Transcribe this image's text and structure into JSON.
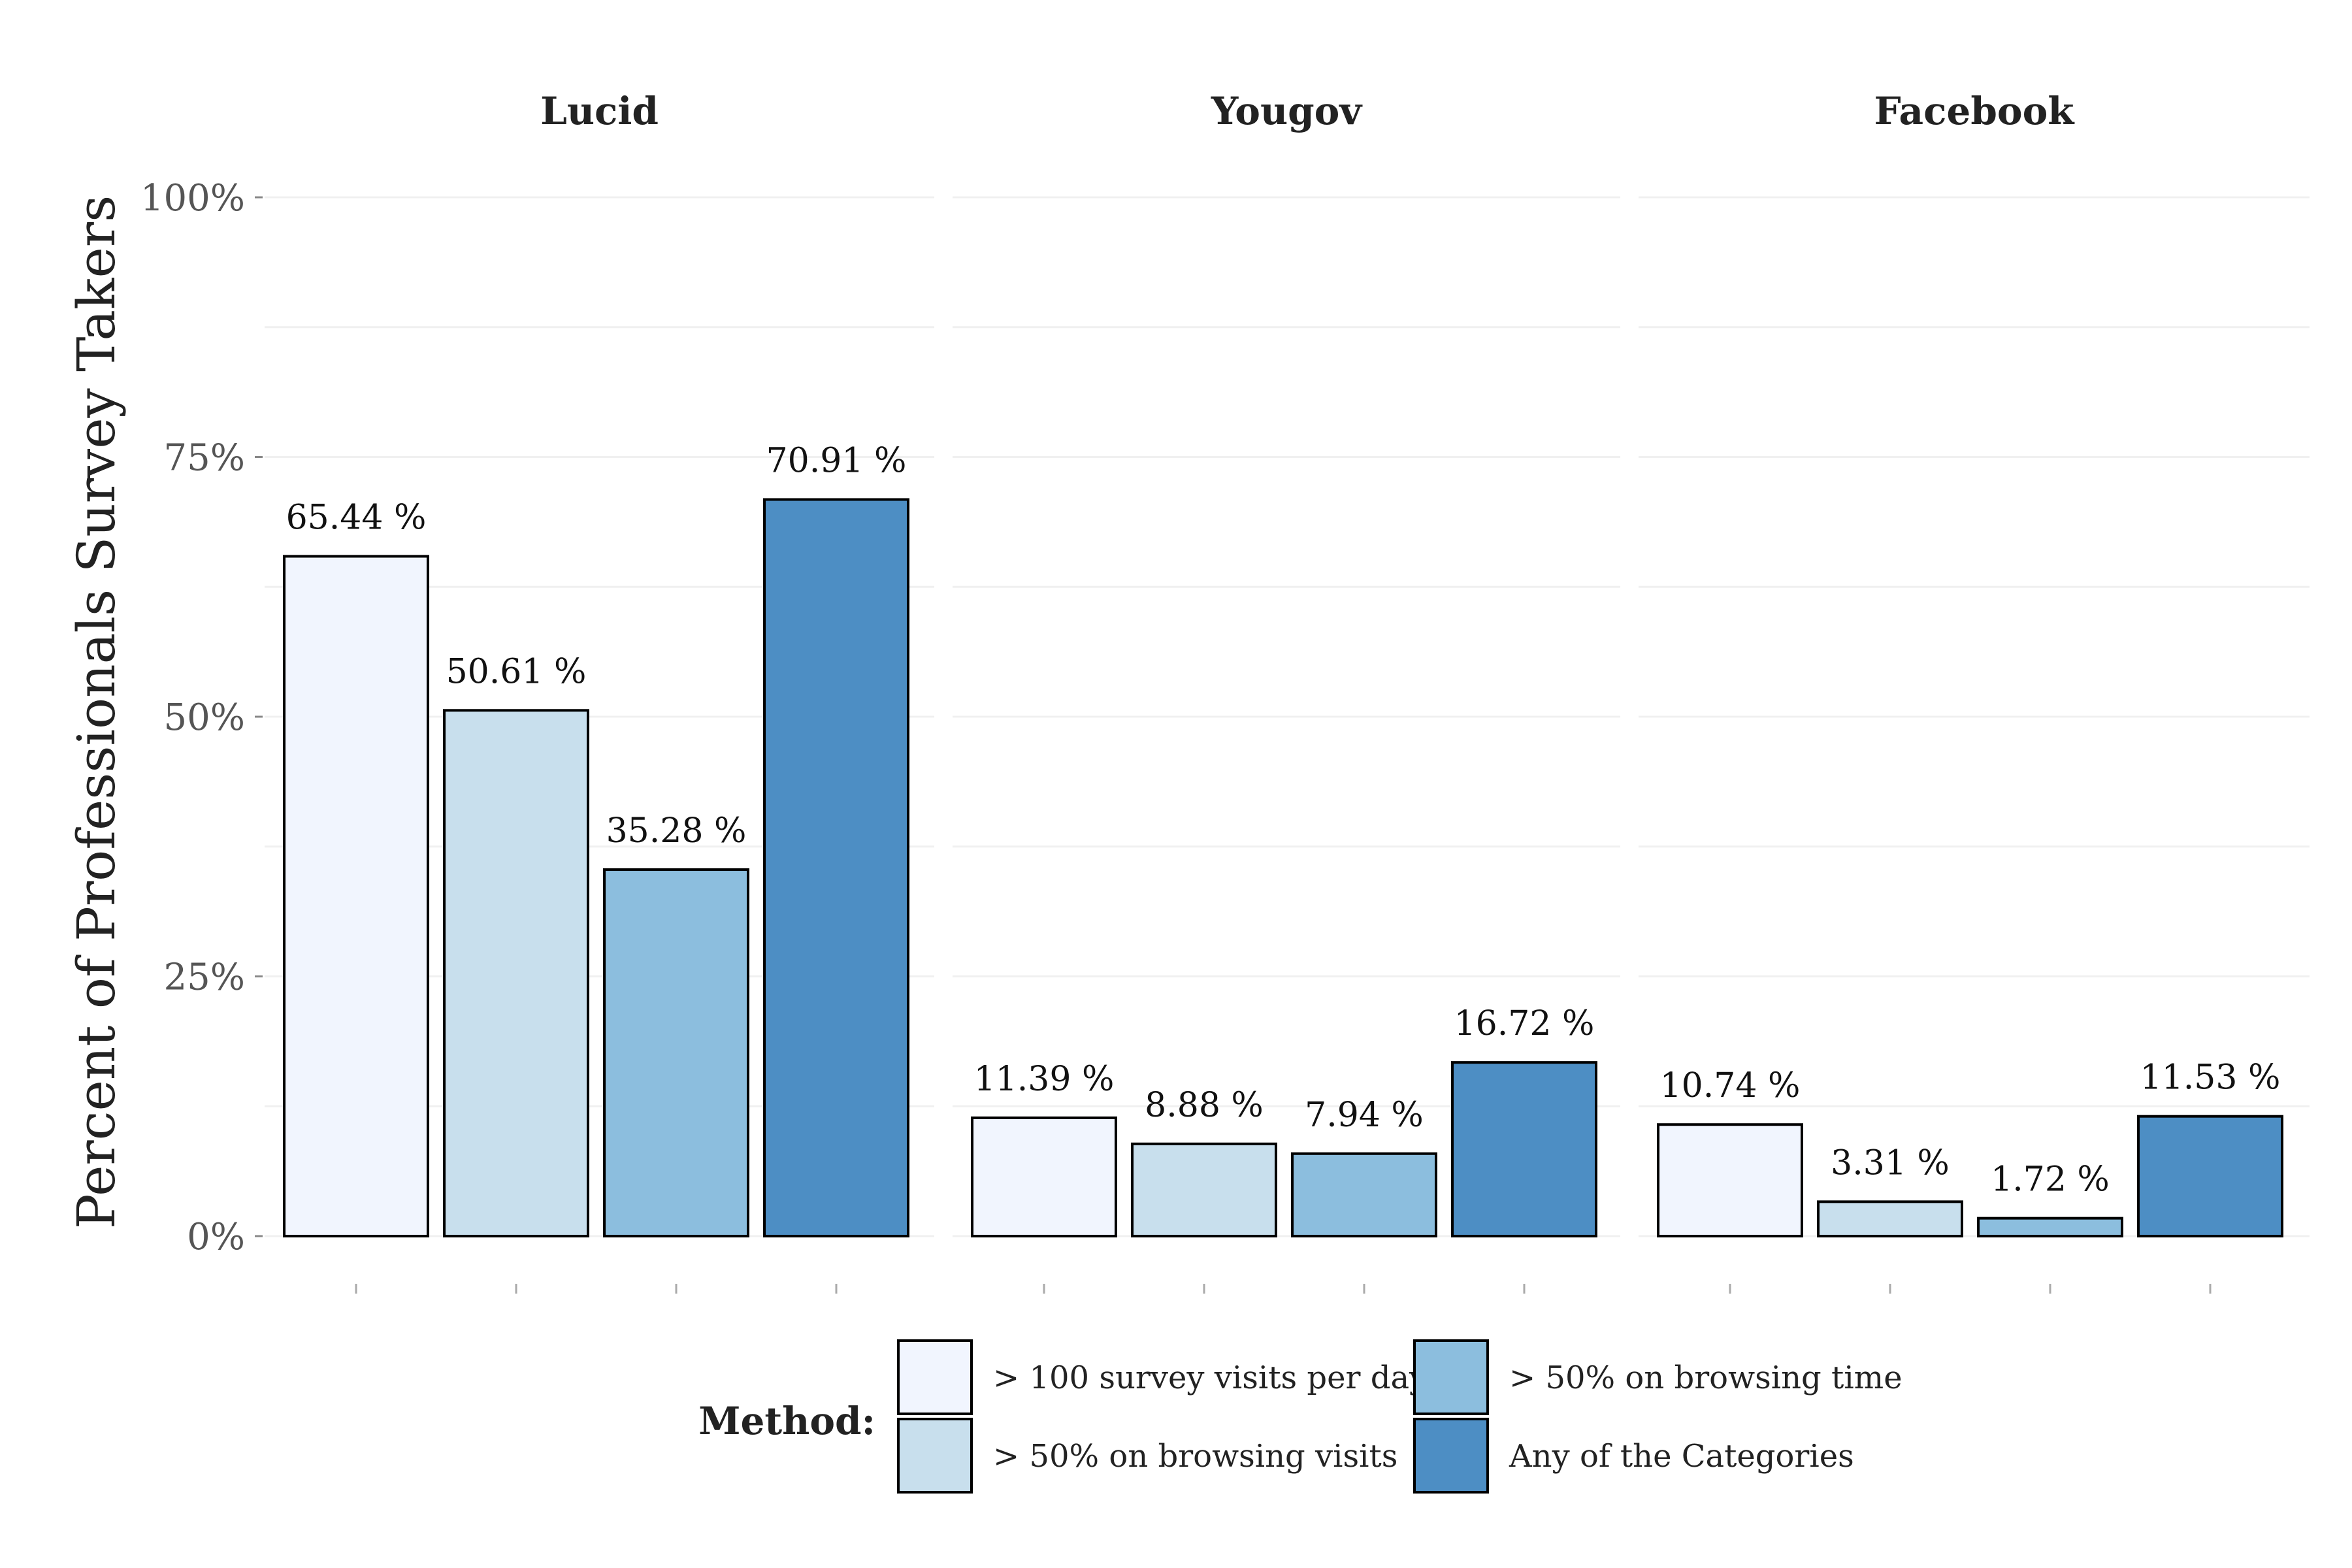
{
  "chart_data": {
    "type": "bar",
    "ylabel": "Percent of Professionals Survey Takers",
    "ylim": [
      0,
      100
    ],
    "yticks": [
      "0%",
      "25%",
      "50%",
      "75%",
      "100%"
    ],
    "ytick_values": [
      0,
      25,
      50,
      75,
      100
    ],
    "grid": true,
    "legend_position": "bottom",
    "legend_title": "Method:",
    "series": [
      {
        "name": "> 100 survey visits per day",
        "color": "#f1f5fe"
      },
      {
        "name": "> 50% on browsing visits",
        "color": "#c8dfed"
      },
      {
        "name": "> 50% on browsing time",
        "color": "#8cbede"
      },
      {
        "name": "Any of the Categories",
        "color": "#4d8ec4"
      }
    ],
    "panels": [
      {
        "title": "Lucid",
        "values": [
          65.44,
          50.61,
          35.28,
          70.91
        ],
        "labels": [
          "65.44 %",
          "50.61 %",
          "35.28 %",
          "70.91 %"
        ]
      },
      {
        "title": "Yougov",
        "values": [
          11.39,
          8.88,
          7.94,
          16.72
        ],
        "labels": [
          "11.39 %",
          "8.88 %",
          "7.94 %",
          "16.72 %"
        ]
      },
      {
        "title": "Facebook",
        "values": [
          10.74,
          3.31,
          1.72,
          11.53
        ],
        "labels": [
          "10.74 %",
          "3.31 %",
          "1.72 %",
          "11.53 %"
        ]
      }
    ]
  }
}
